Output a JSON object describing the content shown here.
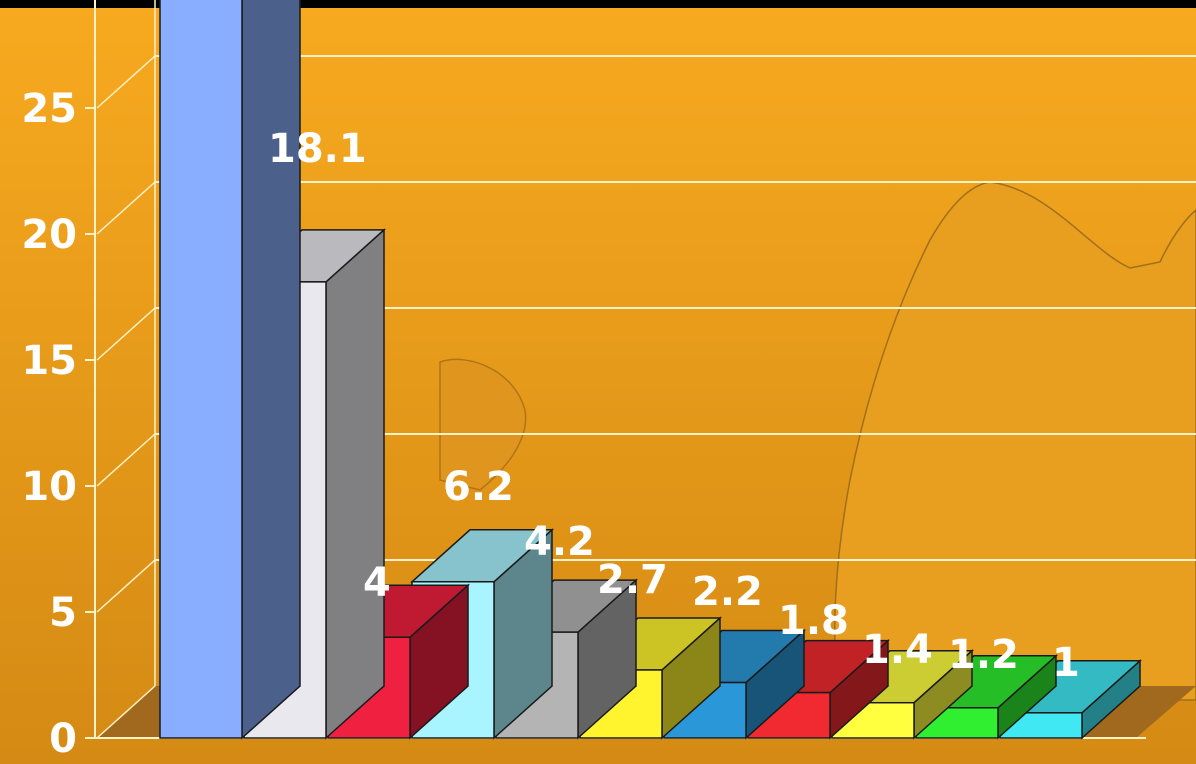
{
  "chart_data": {
    "type": "bar",
    "three_d": true,
    "values": [
      30,
      18.1,
      4,
      6.2,
      4.2,
      2.7,
      2.2,
      1.8,
      1.4,
      1.2,
      1
    ],
    "data_labels": [
      "",
      "18.1",
      "4",
      "6.2",
      "4.2",
      "2.7",
      "2.2",
      "1.8",
      "1.4",
      "1.2",
      "1"
    ],
    "ylim": [
      0,
      30
    ],
    "y_ticks": [
      "0",
      "5",
      "10",
      "15",
      "20",
      "25"
    ],
    "grid": true,
    "title": "",
    "xlabel": "",
    "ylabel": "",
    "colors": {
      "background": "#F5A623",
      "gridline": "#FFF2C8",
      "floor": "#A0691E",
      "bars": [
        "#8AAEFF",
        "#E8E8EE",
        "#F02040",
        "#A8F4FF",
        "#B4B4B4",
        "#FFF42E",
        "#2A98D8",
        "#F02A30",
        "#FFFF40",
        "#30EE30",
        "#40E8F4"
      ]
    }
  }
}
